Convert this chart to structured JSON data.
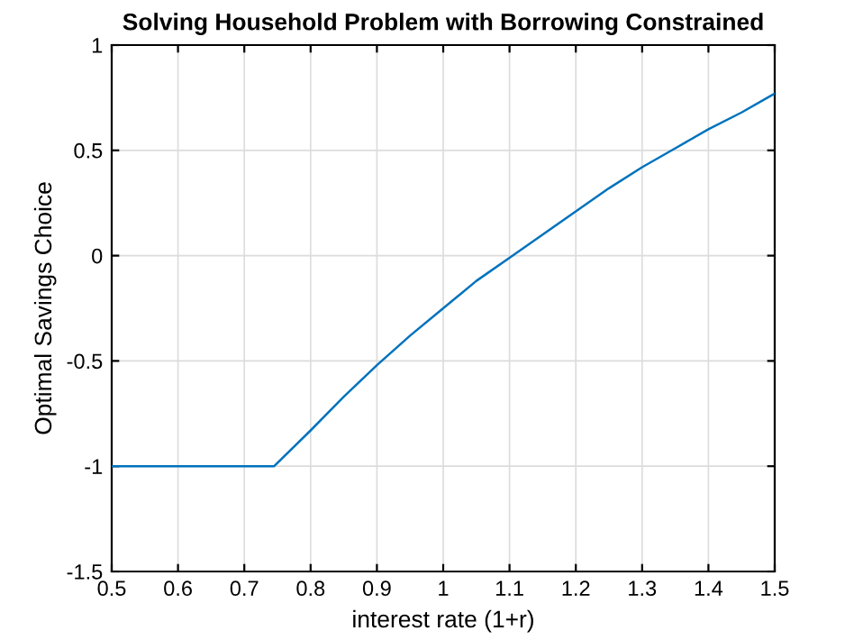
{
  "chart_data": {
    "type": "line",
    "title": "Solving Household Problem with Borrowing Constrained",
    "xlabel": "interest rate (1+r)",
    "ylabel": "Optimal Savings Choice",
    "series": [
      {
        "color": "#0072bd",
        "x": [
          0.5,
          0.6,
          0.7,
          0.745,
          0.8,
          0.85,
          0.9,
          0.95,
          1.0,
          1.05,
          1.1,
          1.15,
          1.2,
          1.25,
          1.3,
          1.35,
          1.4,
          1.45,
          1.5
        ],
        "values": [
          -1,
          -1,
          -1,
          -1,
          -0.83,
          -0.67,
          -0.52,
          -0.38,
          -0.25,
          -0.12,
          -0.01,
          0.1,
          0.21,
          0.32,
          0.42,
          0.51,
          0.6,
          0.68,
          0.77
        ]
      }
    ],
    "xlim": [
      0.5,
      1.5
    ],
    "ylim": [
      -1.5,
      1
    ],
    "xticks": [
      0.5,
      0.6,
      0.7,
      0.8,
      0.9,
      1,
      1.1,
      1.2,
      1.3,
      1.4,
      1.5
    ],
    "yticks": [
      -1.5,
      -1,
      -0.5,
      0,
      0.5,
      1
    ],
    "grid": true,
    "marker": "none",
    "line_style": "solid"
  }
}
